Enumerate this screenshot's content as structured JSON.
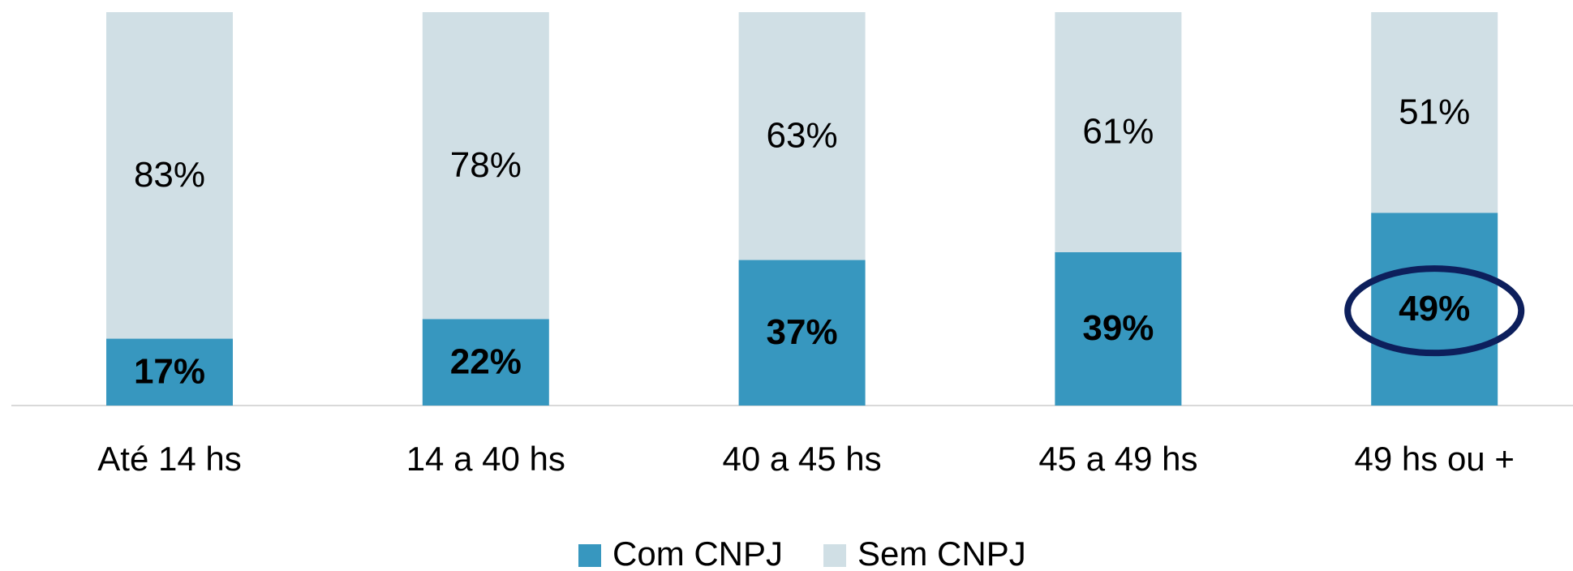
{
  "chart_data": {
    "type": "stacked_bar",
    "categories": [
      "Até 14 hs",
      "14 a 40 hs",
      "40 a 45 hs",
      "45 a 49 hs",
      "49 hs ou +"
    ],
    "series": [
      {
        "name": "Com CNPJ",
        "color": "#3797bf",
        "values": [
          17,
          22,
          37,
          39,
          49
        ],
        "value_labels": [
          "17%",
          "22%",
          "37%",
          "39%",
          "49%"
        ]
      },
      {
        "name": "Sem CNPJ",
        "color": "#d0dfe5",
        "values": [
          83,
          78,
          63,
          61,
          51
        ],
        "value_labels": [
          "83%",
          "78%",
          "63%",
          "61%",
          "51%"
        ]
      }
    ],
    "ylim": [
      0,
      100
    ],
    "legend": "bottom"
  }
}
